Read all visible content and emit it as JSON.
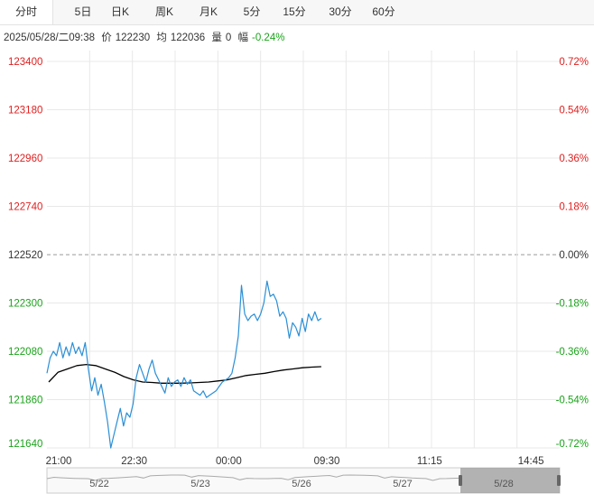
{
  "tabs": [
    {
      "label": "分时",
      "active": true
    },
    {
      "label": "5日",
      "active": false
    },
    {
      "label": "日K",
      "active": false
    },
    {
      "label": "周K",
      "active": false
    },
    {
      "label": "月K",
      "active": false
    },
    {
      "label": "5分",
      "active": false
    },
    {
      "label": "15分",
      "active": false
    },
    {
      "label": "30分",
      "active": false
    },
    {
      "label": "60分",
      "active": false
    }
  ],
  "info": {
    "datetime": "2025/05/28/二09:38",
    "price_label": "价",
    "price": "122230",
    "avg_label": "均",
    "avg": "122036",
    "volume_label": "量",
    "volume": "0",
    "change_label": "幅",
    "change": "-0.24%"
  },
  "colors": {
    "up": "#e02020",
    "down": "#1aa31a",
    "neutral": "#333333",
    "price_line": "#2b8fd6",
    "avg_line": "#000000",
    "grid": "#e8e8e8"
  },
  "chart_data": {
    "type": "line",
    "ylim": [
      121640,
      123400
    ],
    "base_price": 122520,
    "left_ticks": [
      "123400",
      "123180",
      "122960",
      "122740",
      "122520",
      "122300",
      "122080",
      "121860",
      "121640"
    ],
    "right_ticks": [
      "0.72%",
      "0.54%",
      "0.36%",
      "0.18%",
      "0.00%",
      "-0.18%",
      "-0.36%",
      "-0.54%",
      "-0.72%"
    ],
    "x_ticks": [
      "21:00",
      "22:30",
      "00:00",
      "09:30",
      "11:15",
      "14:45"
    ],
    "nav_labels": [
      "5/22",
      "5/23",
      "5/26",
      "5/27",
      "5/28"
    ],
    "series": [
      {
        "values": [
          121980,
          122050,
          122080,
          122060,
          122120,
          122050,
          122100,
          122060,
          122120,
          122070,
          122100,
          122060,
          122120,
          122000,
          121900,
          121960,
          121880,
          121930,
          121850,
          121760,
          121640,
          121700,
          121760,
          121820,
          121740,
          121800,
          121780,
          121840,
          121960,
          122020,
          121980,
          121940,
          122000,
          122040,
          121980,
          121950,
          121920,
          121890,
          121960,
          121920,
          121940,
          121950,
          121920,
          121960,
          121930,
          121950,
          121900,
          121890,
          121880,
          121900,
          121870,
          121880,
          121890,
          121900,
          121920,
          121940,
          121950,
          121960,
          121980,
          122050,
          122150,
          122380,
          122250,
          122220,
          122240,
          122250,
          122220,
          122250,
          122300,
          122400,
          122330,
          122340,
          122310,
          122240,
          122260,
          122230,
          122140,
          122210,
          122190,
          122150,
          122230,
          122170,
          122250,
          122220,
          122260,
          122220,
          122230
        ]
      },
      {
        "values": [
          121940,
          121985,
          122000,
          122015,
          122020,
          122015,
          122000,
          121985,
          121965,
          121950,
          121940,
          121938,
          121935,
          121935,
          121935,
          121936,
          121938,
          121940,
          121945,
          121950,
          121960,
          121970,
          121975,
          121980,
          121988,
          121995,
          122000,
          122005,
          122008,
          122010
        ]
      }
    ]
  }
}
